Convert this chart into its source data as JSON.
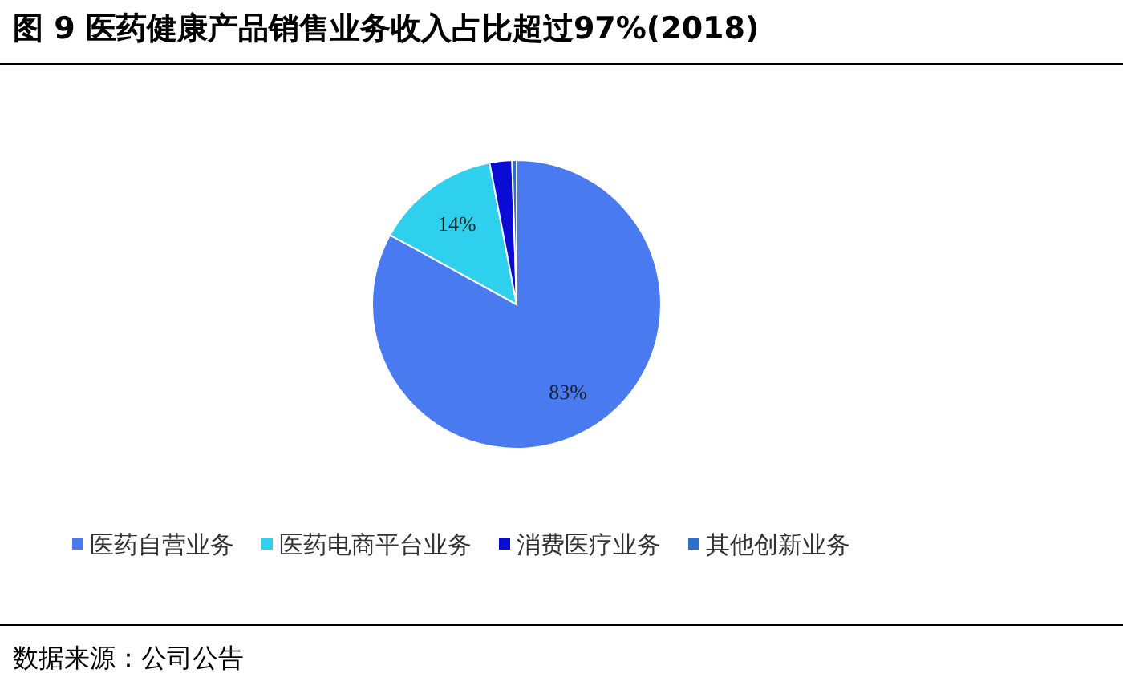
{
  "chart_data": {
    "type": "pie",
    "title": "图 9 医药健康产品销售业务收入占比超过97%(2018)",
    "categories": [
      "医药自营业务",
      "医药电商平台业务",
      "消费医疗业务",
      "其他创新业务"
    ],
    "values": [
      83,
      14,
      2.5,
      0.5
    ],
    "colors": [
      "#4a7af0",
      "#2fd0ee",
      "#0b0bd6",
      "#2e6fce"
    ],
    "value_labels": [
      "83%",
      "14%",
      null,
      null
    ],
    "legend": "bottom",
    "annotations": [
      "数据来源：公司公告"
    ]
  }
}
